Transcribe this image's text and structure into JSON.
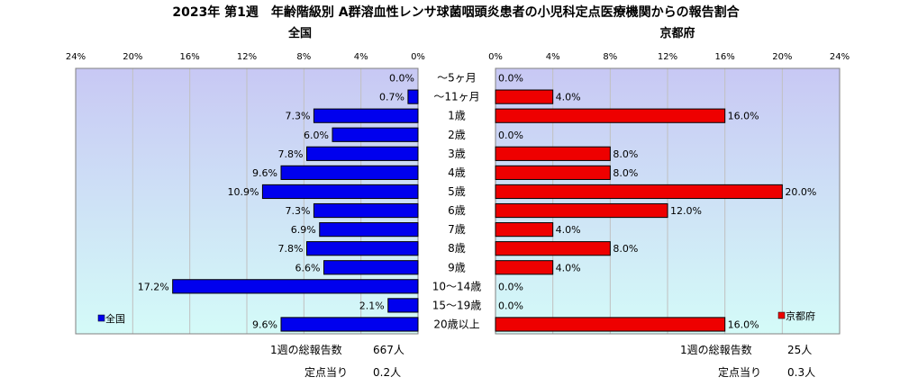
{
  "title": "2023年 第1週　年齢階級別 A群溶血性レンサ球菌咽頭炎患者の小児科定点医療機関からの報告割合",
  "colors": {
    "national_bar": "#0000ee",
    "kyoto_bar": "#ee0000",
    "plot_top": "#c8c8f4",
    "plot_bottom": "#d4fbf8",
    "grid": "#c0c0c0"
  },
  "chart_data": [
    {
      "type": "bar",
      "orientation": "horizontal-left",
      "title": "全国",
      "legend": "全国",
      "legend_position": "bottom-left",
      "xlim": [
        0,
        24
      ],
      "ticks": [
        "24%",
        "20%",
        "16%",
        "12%",
        "8%",
        "4%",
        "0%"
      ],
      "tick_values": [
        24,
        20,
        16,
        12,
        8,
        4,
        0
      ],
      "grid": true,
      "categories": [
        "～5ヶ月",
        "～11ヶ月",
        "1歳",
        "2歳",
        "3歳",
        "4歳",
        "5歳",
        "6歳",
        "7歳",
        "8歳",
        "9歳",
        "10～14歳",
        "15～19歳",
        "20歳以上"
      ],
      "values": [
        0.0,
        0.7,
        7.3,
        6.0,
        7.8,
        9.6,
        10.9,
        7.3,
        6.9,
        7.8,
        6.6,
        17.2,
        2.1,
        9.6
      ],
      "value_labels": [
        "0.0%",
        "0.7%",
        "7.3%",
        "6.0%",
        "7.8%",
        "9.6%",
        "10.9%",
        "7.3%",
        "6.9%",
        "7.8%",
        "6.6%",
        "17.2%",
        "2.1%",
        "9.6%"
      ]
    },
    {
      "type": "bar",
      "orientation": "horizontal-right",
      "title": "京都府",
      "legend": "京都府",
      "legend_position": "bottom-right",
      "xlim": [
        0,
        24
      ],
      "ticks": [
        "0%",
        "4%",
        "8%",
        "12%",
        "16%",
        "20%",
        "24%"
      ],
      "tick_values": [
        0,
        4,
        8,
        12,
        16,
        20,
        24
      ],
      "grid": true,
      "categories": [
        "～5ヶ月",
        "～11ヶ月",
        "1歳",
        "2歳",
        "3歳",
        "4歳",
        "5歳",
        "6歳",
        "7歳",
        "8歳",
        "9歳",
        "10～14歳",
        "15～19歳",
        "20歳以上"
      ],
      "values": [
        0.0,
        4.0,
        16.0,
        0.0,
        8.0,
        8.0,
        20.0,
        12.0,
        4.0,
        8.0,
        4.0,
        0.0,
        0.0,
        16.0
      ],
      "value_labels": [
        "0.0%",
        "4.0%",
        "16.0%",
        "0.0%",
        "8.0%",
        "8.0%",
        "20.0%",
        "12.0%",
        "4.0%",
        "8.0%",
        "4.0%",
        "0.0%",
        "0.0%",
        "16.0%"
      ]
    }
  ],
  "summary": {
    "national": {
      "total_label": "1週の総報告数",
      "total_value": "667人",
      "per_label": "定点当り",
      "per_value": "0.2人"
    },
    "kyoto": {
      "total_label": "1週の総報告数",
      "total_value": "25人",
      "per_label": "定点当り",
      "per_value": "0.3人"
    }
  }
}
